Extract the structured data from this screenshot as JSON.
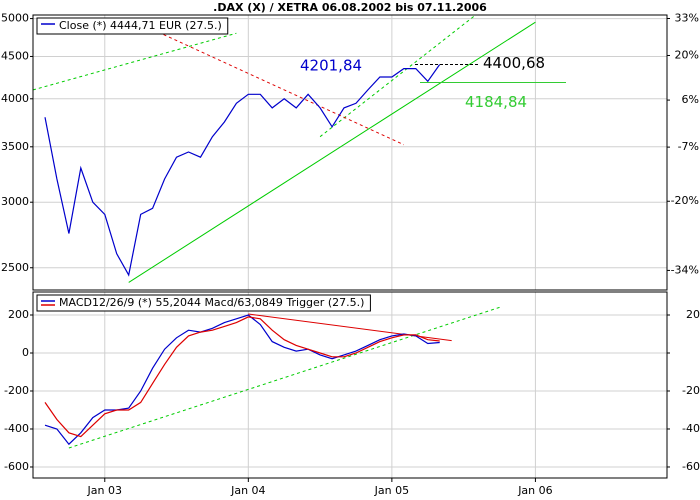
{
  "chart_data": [
    {
      "type": "line",
      "title": ".DAX (X) / XETRA 06.08.2002 bis 07.11.2006",
      "log": true,
      "grid": true,
      "xlim": [
        "2002-07",
        "2006-12"
      ],
      "x": [
        "2002-08",
        "2002-09",
        "2002-10",
        "2002-11",
        "2002-12",
        "2003-01",
        "2003-02",
        "2003-03",
        "2003-04",
        "2003-05",
        "2003-06",
        "2003-07",
        "2003-08",
        "2003-09",
        "2003-10",
        "2003-11",
        "2003-12",
        "2004-01",
        "2004-02",
        "2004-03",
        "2004-04",
        "2004-05",
        "2004-06",
        "2004-07",
        "2004-08",
        "2004-09",
        "2004-10",
        "2004-11",
        "2004-12",
        "2005-01",
        "2005-02",
        "2005-03",
        "2005-04",
        "2005-05"
      ],
      "series": [
        {
          "name": "Close (*) 4444,71 EUR (27.5.)",
          "color": "#0000cc",
          "values": [
            3800,
            3200,
            2750,
            3300,
            3000,
            2900,
            2600,
            2450,
            2900,
            2950,
            3200,
            3400,
            3450,
            3400,
            3600,
            3750,
            3950,
            4050,
            4050,
            3900,
            4000,
            3900,
            4050,
            3900,
            3700,
            3900,
            3950,
            4100,
            4250,
            4250,
            4350,
            4350,
            4200,
            4400
          ]
        }
      ],
      "ylim": [
        2350,
        5050
      ],
      "yticks": [
        2500,
        3000,
        3500,
        4000,
        4500,
        5000
      ],
      "y2lim": [
        -37.5,
        34.3
      ],
      "y2ticks": [
        {
          "value": -34,
          "label": "-34%"
        },
        {
          "value": -20,
          "label": "-20%"
        },
        {
          "value": -7,
          "label": "-7%"
        },
        {
          "value": 6,
          "label": "6%"
        },
        {
          "value": 20,
          "label": "20%"
        },
        {
          "value": 33,
          "label": "33%"
        }
      ],
      "annotations": [
        {
          "value": 4201.84,
          "label": "4201,84",
          "color": "#0000cc"
        },
        {
          "value": 4400.68,
          "label": "4400,68",
          "color": "#000000"
        },
        {
          "value": 4184.84,
          "label": "4184,84",
          "color": "#33cc33"
        }
      ],
      "trendlines": [
        {
          "from": [
            "2003-03",
            2400
          ],
          "to": [
            "2006-01",
            4950
          ],
          "color": "#00cc00",
          "dashed": false
        },
        {
          "from": [
            "2002-07",
            4100
          ],
          "to": [
            "2003-12",
            4800
          ],
          "color": "#00cc00",
          "dashed": true
        },
        {
          "from": [
            "2004-07",
            3600
          ],
          "to": [
            "2005-08",
            5050
          ],
          "color": "#00cc00",
          "dashed": true
        },
        {
          "from": [
            "2003-05",
            4850
          ],
          "to": [
            "2005-02",
            3520
          ],
          "color": "#dd0000",
          "dashed": true
        }
      ]
    },
    {
      "type": "line",
      "grid": true,
      "legend": "MACD12/26/9 (*) 55,2044 Macd/63,0849 Trigger (27.5.)",
      "xlim": [
        "2002-07",
        "2006-12"
      ],
      "xticks": [
        {
          "value": "2003-01",
          "label": "Jan 03"
        },
        {
          "value": "2004-01",
          "label": "Jan 04"
        },
        {
          "value": "2005-01",
          "label": "Jan 05"
        },
        {
          "value": "2006-01",
          "label": "Jan 06"
        }
      ],
      "x": [
        "2002-08",
        "2002-09",
        "2002-10",
        "2002-11",
        "2002-12",
        "2003-01",
        "2003-02",
        "2003-03",
        "2003-04",
        "2003-05",
        "2003-06",
        "2003-07",
        "2003-08",
        "2003-09",
        "2003-10",
        "2003-11",
        "2003-12",
        "2004-01",
        "2004-02",
        "2004-03",
        "2004-04",
        "2004-05",
        "2004-06",
        "2004-07",
        "2004-08",
        "2004-09",
        "2004-10",
        "2004-11",
        "2004-12",
        "2005-01",
        "2005-02",
        "2005-03",
        "2005-04",
        "2005-05"
      ],
      "series": [
        {
          "color": "#0000cc",
          "values": [
            -380,
            -400,
            -480,
            -420,
            -340,
            -300,
            -300,
            -290,
            -200,
            -80,
            20,
            80,
            120,
            110,
            130,
            160,
            180,
            200,
            150,
            60,
            30,
            10,
            20,
            -10,
            -30,
            -10,
            10,
            40,
            70,
            90,
            100,
            90,
            50,
            55
          ]
        },
        {
          "color": "#dd0000",
          "values": [
            -260,
            -350,
            -420,
            -440,
            -380,
            -320,
            -300,
            -300,
            -260,
            -160,
            -60,
            30,
            90,
            110,
            120,
            140,
            160,
            190,
            180,
            120,
            70,
            40,
            20,
            0,
            -20,
            -20,
            0,
            30,
            60,
            80,
            95,
            95,
            70,
            63
          ]
        }
      ],
      "ylim": [
        -658,
        321
      ],
      "yticks": [
        -600,
        -400,
        -200,
        0,
        200
      ],
      "trendlines": [
        {
          "from": [
            "2004-01",
            205
          ],
          "to": [
            "2005-06",
            65
          ],
          "color": "#dd0000",
          "dashed": false
        },
        {
          "from": [
            "2002-10",
            -500
          ],
          "to": [
            "2005-10",
            240
          ],
          "color": "#00cc00",
          "dashed": true
        }
      ]
    }
  ]
}
